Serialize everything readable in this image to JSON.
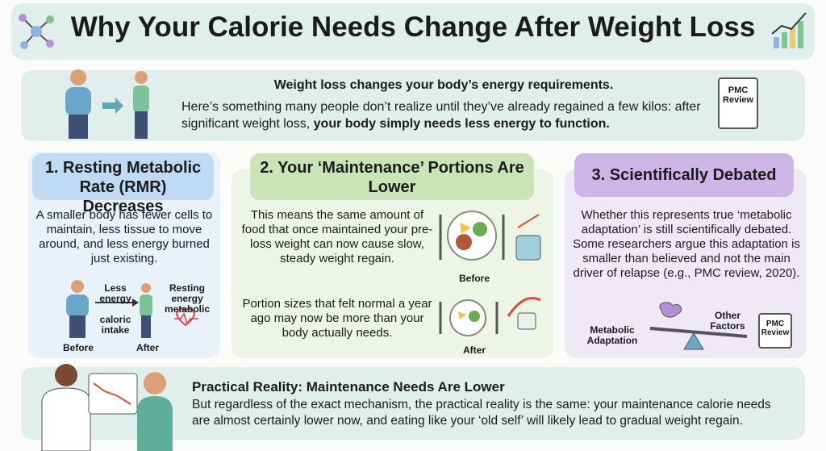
{
  "header": {
    "title": "Why Your Calorie Needs Change After Weight Loss"
  },
  "intro": {
    "heading": "Weight loss changes your body’s energy requirements.",
    "text": "Here’s something many people don’t realize until they’ve already regained a few kilos: after significant weight loss, ",
    "text_bold": "your body simply needs less energy to function.",
    "badge": "PMC Review"
  },
  "sections": [
    {
      "title": "1. Resting Metabolic Rate (RMR) Decreases",
      "text": "A smaller body has fewer cells to maintain, less tissue to move around, and less energy burned just existing.",
      "labels": [
        "Less energy",
        "caloric intake",
        "Resting energy metabolic",
        "Before",
        "After"
      ]
    },
    {
      "title": "2. Your ‘Maintenance’ Portions Are Lower",
      "paragraphs": [
        "This means the same amount of food that once maintained your pre-loss weight can now cause slow, steady weight regain.",
        "Portion sizes that felt normal a year ago may now be more than your body actually needs."
      ],
      "labels": [
        "Before",
        "After"
      ]
    },
    {
      "title": "3. Scientifically Debated",
      "text": "Whether this represents true ‘metabolic adaptation’ is still scientifically debated. Some researchers argue this adaptation is smaller than believed and not the main driver of relapse (e.g., PMC review, 2020).",
      "labels": [
        "Metabolic Adaptation",
        "Other Factors",
        "PMC Review"
      ]
    }
  ],
  "footer": {
    "heading": "Practical Reality: Maintenance Needs Are Lower",
    "text": "But regardless of the exact mechanism, the practical reality is the same: your maintenance calorie needs are almost certainly lower now, and eating like your ‘old self’ will likely lead to gradual weight regain."
  }
}
